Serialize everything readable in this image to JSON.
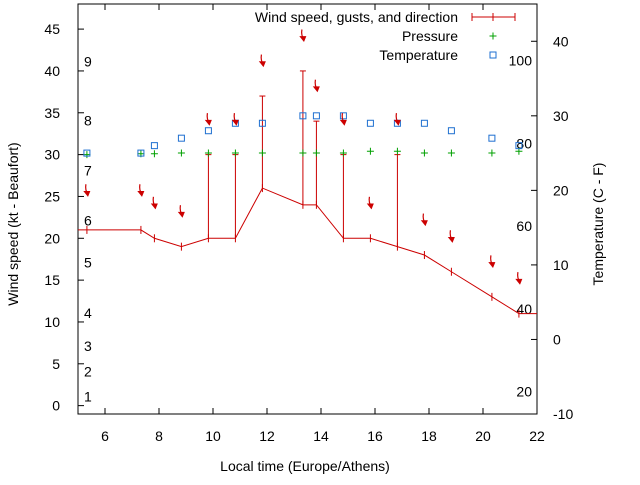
{
  "chart_data": {
    "type": "line",
    "title": "",
    "xlabel": "Local time (Europe/Athens)",
    "ylabel": "Wind speed (kt - Beaufort)",
    "y2label": "Temperature (C - F)",
    "xlim": [
      5,
      22
    ],
    "ylim": [
      -1,
      48
    ],
    "y2lim": [
      -10,
      45
    ],
    "x_ticks": [
      6,
      8,
      10,
      12,
      14,
      16,
      18,
      20,
      22
    ],
    "y_ticks": [
      0,
      5,
      10,
      15,
      20,
      25,
      30,
      35,
      40,
      45
    ],
    "y2_ticks": [
      -10,
      0,
      10,
      20,
      30,
      40
    ],
    "grid": false,
    "legend_position": "top-right",
    "beaufort_labels": [
      {
        "text": "1",
        "y": 1.1
      },
      {
        "text": "2",
        "y": 4.1
      },
      {
        "text": "3",
        "y": 7.1
      },
      {
        "text": "4",
        "y": 11.1
      },
      {
        "text": "5",
        "y": 17.1
      },
      {
        "text": "6",
        "y": 22.1
      },
      {
        "text": "7",
        "y": 28.1
      },
      {
        "text": "8",
        "y": 34.1
      },
      {
        "text": "9",
        "y": 41.1
      }
    ],
    "fahrenheit_labels": [
      {
        "text": "20",
        "y": -7.0
      },
      {
        "text": "40",
        "y": 4.1
      },
      {
        "text": "60",
        "y": 15.2
      },
      {
        "text": "80",
        "y": 26.3
      },
      {
        "text": "100",
        "y": 37.4
      }
    ],
    "series": [
      {
        "name": "Wind speed, gusts, and direction",
        "color": "#cc0000",
        "x": [
          5.0,
          5.33,
          7.33,
          7.83,
          8.83,
          9.83,
          10.83,
          11.83,
          13.33,
          13.83,
          14.83,
          15.83,
          16.83,
          17.83,
          18.83,
          20.33,
          21.33,
          22.0
        ],
        "values": [
          21,
          21,
          21,
          20,
          19,
          20,
          20,
          26,
          24,
          24,
          20,
          20,
          19,
          18,
          16,
          13,
          11,
          11
        ],
        "gusts": [
          {
            "x": 9.83,
            "base": 20,
            "top": 30
          },
          {
            "x": 10.83,
            "base": 20,
            "top": 30
          },
          {
            "x": 11.83,
            "base": 26,
            "top": 37
          },
          {
            "x": 13.33,
            "base": 24,
            "top": 40
          },
          {
            "x": 13.83,
            "base": 24,
            "top": 34
          },
          {
            "x": 14.83,
            "base": 20,
            "top": 30
          },
          {
            "x": 16.83,
            "base": 19,
            "top": 30
          }
        ]
      },
      {
        "name": "Pressure",
        "color": "#00a000",
        "x": [
          5.33,
          7.33,
          7.83,
          8.83,
          9.83,
          10.83,
          11.83,
          13.33,
          13.83,
          14.83,
          15.83,
          16.83,
          17.83,
          18.83,
          20.33,
          21.33
        ],
        "values": [
          30.0,
          30.1,
          30.1,
          30.2,
          30.2,
          30.2,
          30.2,
          30.2,
          30.2,
          30.2,
          30.4,
          30.4,
          30.2,
          30.2,
          30.2,
          30.4
        ]
      },
      {
        "name": "Temperature",
        "color": "#1e6fd0",
        "x": [
          5.33,
          7.33,
          7.83,
          8.83,
          9.83,
          10.83,
          11.83,
          13.33,
          13.83,
          14.83,
          15.83,
          16.83,
          17.83,
          18.83,
          20.33,
          21.33
        ],
        "values": [
          25,
          25,
          26,
          27,
          28,
          29,
          29,
          30,
          30,
          30,
          29,
          29,
          29,
          28,
          27,
          26
        ]
      }
    ],
    "direction_arrows": [
      {
        "x": 5.33,
        "y": 25.5
      },
      {
        "x": 7.33,
        "y": 25.5
      },
      {
        "x": 7.83,
        "y": 24.0
      },
      {
        "x": 8.83,
        "y": 23.0
      },
      {
        "x": 9.83,
        "y": 34.0
      },
      {
        "x": 10.83,
        "y": 34.0
      },
      {
        "x": 11.83,
        "y": 41.0
      },
      {
        "x": 13.33,
        "y": 44.0
      },
      {
        "x": 13.83,
        "y": 38.0
      },
      {
        "x": 14.83,
        "y": 34.0
      },
      {
        "x": 15.83,
        "y": 24.0
      },
      {
        "x": 16.83,
        "y": 34.0
      },
      {
        "x": 17.83,
        "y": 22.0
      },
      {
        "x": 18.83,
        "y": 20.0
      },
      {
        "x": 20.33,
        "y": 17.0
      },
      {
        "x": 21.33,
        "y": 15.0
      }
    ]
  }
}
